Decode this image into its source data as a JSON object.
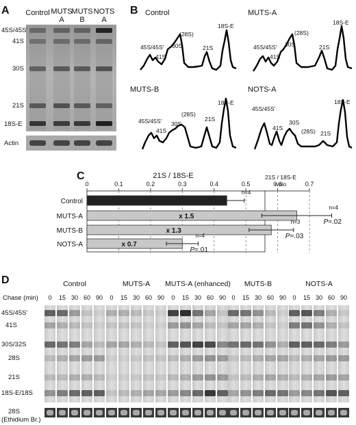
{
  "panel_labels": [
    "A",
    "B",
    "C",
    "D"
  ],
  "panel_a": {
    "lanes": [
      {
        "line1": "Control",
        "line2": ""
      },
      {
        "line1": "MUTS",
        "line2": "A"
      },
      {
        "line1": "MUTS",
        "line2": "B"
      },
      {
        "line1": "NOTS",
        "line2": "A"
      }
    ],
    "bands": [
      "45S/45S'",
      "41S",
      "30S",
      "21S",
      "18S-E"
    ],
    "actin_label": "Actin"
  },
  "panel_b": {
    "traces": [
      {
        "title": "Control",
        "labels": [
          "45S/45S'",
          "41S",
          "30S",
          "(28S)",
          "21S",
          "18S-E"
        ]
      },
      {
        "title": "MUTS-A",
        "labels": [
          "45S/45S'",
          "41S",
          "30S",
          "(28S)",
          "21S",
          "18S-E"
        ]
      },
      {
        "title": "MUTS-B",
        "labels": [
          "45S/45S'",
          "41S",
          "30S",
          "(28S)",
          "21S",
          "18S-E"
        ]
      },
      {
        "title": "NOTS-A",
        "labels": [
          "45S/45S'",
          "41S",
          "30S",
          "(28S)",
          "21S",
          "18S-E"
        ]
      }
    ]
  },
  "chart_data": {
    "type": "bar",
    "title": "21S / 18S-E",
    "orientation": "horizontal",
    "xlim": [
      0,
      0.7
    ],
    "ticks": [
      "0",
      "0.1",
      "0.2",
      "0.3",
      "0.4",
      "0.5",
      "0.6",
      "0.7"
    ],
    "axis_note": "21S / 18S-E ratio",
    "categories": [
      "Control",
      "MUTS-A",
      "MUTS-B",
      "NOTS-A"
    ],
    "values": [
      0.44,
      0.66,
      0.58,
      0.3
    ],
    "errors": [
      0.055,
      0.11,
      0.07,
      0.05
    ],
    "fold_labels": [
      "",
      "x 1.5",
      "x 1.3",
      "x 0.7"
    ],
    "n_labels": [
      "n=4",
      "n=4",
      "n=3",
      "n=4"
    ],
    "p_values": [
      "",
      "=.02",
      "=.03",
      "=.01"
    ],
    "p_symbol": "P",
    "colors": {
      "control": "#222222",
      "others": "#c8c8c8"
    },
    "grid": "dashed vertical"
  },
  "panel_d": {
    "chase_label": "Chase (min)",
    "groups": [
      "Control",
      "MUTS-A",
      "MUTS-A (enhanced)",
      "MUTS-B",
      "NOTS-A"
    ],
    "times": [
      "0",
      "15",
      "30",
      "60",
      "90"
    ],
    "bands": [
      "45S/45S'",
      "41S",
      "30S/32S",
      "28S",
      "21S",
      "18S-E/18S"
    ],
    "bottom_label_1": "28S",
    "bottom_label_2": "(Ethidium Br.)"
  }
}
